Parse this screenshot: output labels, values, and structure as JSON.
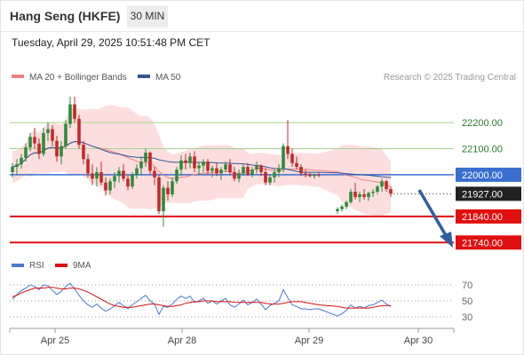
{
  "header": {
    "instrument": "Hang Seng (HKFE)",
    "timeframe": "30 MIN",
    "datetime": "Tuesday, April 29, 2025 10:51:48 PM CET"
  },
  "credit": "Research © 2025 Trading Central",
  "colors": {
    "ma20": "#f08080",
    "bollinger_fill": "#fcdede",
    "ma50": "#2f5597",
    "candle_up": "#2e8b3a",
    "candle_down": "#c62828",
    "support": "#e01010",
    "pivot": "#3a6fd0",
    "resistance": "#a8d18d",
    "rsi": "#4a78d0",
    "rsi_ma": "#e01010",
    "arrow": "#2f5fa0"
  },
  "chart_data": [
    {
      "type": "candlestick",
      "title": "",
      "legend": [
        {
          "name": "MA 20 + Bollinger Bands",
          "color": "#f08080",
          "icon": "line-swatch"
        },
        {
          "name": "MA 50",
          "color": "#2f5597",
          "icon": "line-swatch"
        }
      ],
      "x_ticks": [
        "Apr 25",
        "Apr 28",
        "Apr 29",
        "Apr 30"
      ],
      "ylim": [
        21700,
        22330
      ],
      "levels": [
        {
          "label": "22200.00",
          "value": 22200,
          "kind": "resistance"
        },
        {
          "label": "22100.00",
          "value": 22100,
          "kind": "resistance"
        },
        {
          "label": "22000.00",
          "value": 22000,
          "kind": "pivot"
        },
        {
          "label": "21927.00",
          "value": 21927,
          "kind": "last"
        },
        {
          "label": "21840.00",
          "value": 21840,
          "kind": "support"
        },
        {
          "label": "21740.00",
          "value": 21740,
          "kind": "support"
        }
      ],
      "ohlc": [
        [
          22010,
          22045,
          21990,
          22030
        ],
        [
          22030,
          22060,
          22000,
          22040
        ],
        [
          22040,
          22080,
          22025,
          22065
        ],
        [
          22065,
          22120,
          22050,
          22105
        ],
        [
          22105,
          22160,
          22090,
          22145
        ],
        [
          22145,
          22180,
          22100,
          22120
        ],
        [
          22120,
          22140,
          22060,
          22080
        ],
        [
          22080,
          22180,
          22070,
          22160
        ],
        [
          22160,
          22200,
          22130,
          22175
        ],
        [
          22175,
          22190,
          22110,
          22130
        ],
        [
          22130,
          22150,
          22050,
          22070
        ],
        [
          22070,
          22130,
          22040,
          22110
        ],
        [
          22110,
          22210,
          22100,
          22195
        ],
        [
          22195,
          22300,
          22180,
          22270
        ],
        [
          22270,
          22300,
          22200,
          22215
        ],
        [
          22215,
          22230,
          22100,
          22115
        ],
        [
          22115,
          22130,
          22040,
          22060
        ],
        [
          22060,
          22080,
          21990,
          22005
        ],
        [
          22005,
          22040,
          21960,
          21985
        ],
        [
          21985,
          22030,
          21955,
          22010
        ],
        [
          22010,
          22050,
          21960,
          21970
        ],
        [
          21970,
          21990,
          21920,
          21940
        ],
        [
          21940,
          21985,
          21925,
          21975
        ],
        [
          21975,
          22010,
          21950,
          21995
        ],
        [
          21995,
          22030,
          21970,
          22015
        ],
        [
          22015,
          22040,
          21975,
          21985
        ],
        [
          21985,
          22000,
          21940,
          21955
        ],
        [
          21955,
          22010,
          21945,
          22000
        ],
        [
          22000,
          22040,
          21985,
          22025
        ],
        [
          22025,
          22070,
          22000,
          22050
        ],
        [
          22050,
          22100,
          22030,
          22085
        ],
        [
          22085,
          22090,
          22000,
          22015
        ],
        [
          22015,
          22030,
          21960,
          21990
        ],
        [
          21990,
          22000,
          21850,
          21860
        ],
        [
          21860,
          21960,
          21800,
          21950
        ],
        [
          21950,
          21975,
          21900,
          21925
        ],
        [
          21925,
          21990,
          21915,
          21975
        ],
        [
          21975,
          22030,
          21965,
          22020
        ],
        [
          22020,
          22075,
          21995,
          22055
        ],
        [
          22055,
          22080,
          22020,
          22045
        ],
        [
          22045,
          22085,
          22025,
          22070
        ],
        [
          22070,
          22090,
          22010,
          22025
        ],
        [
          22025,
          22050,
          22000,
          22035
        ],
        [
          22035,
          22060,
          22010,
          22050
        ],
        [
          22050,
          22060,
          22000,
          22015
        ],
        [
          22015,
          22035,
          21990,
          22025
        ],
        [
          22025,
          22045,
          21995,
          22005
        ],
        [
          22005,
          22030,
          21980,
          22020
        ],
        [
          22020,
          22050,
          22010,
          22040
        ],
        [
          22040,
          22060,
          22000,
          22010
        ],
        [
          22010,
          22030,
          21975,
          21985
        ],
        [
          21985,
          22020,
          21970,
          22005
        ],
        [
          22005,
          22040,
          21995,
          22030
        ],
        [
          22030,
          22045,
          21995,
          22000
        ],
        [
          22000,
          22030,
          21990,
          22020
        ],
        [
          22020,
          22050,
          22005,
          22035
        ],
        [
          22035,
          22040,
          21995,
          22010
        ],
        [
          22010,
          22025,
          21960,
          21970
        ],
        [
          21970,
          22000,
          21960,
          21990
        ],
        [
          21990,
          22020,
          21970,
          22010
        ],
        [
          22010,
          22040,
          21990,
          22025
        ],
        [
          22025,
          22120,
          22010,
          22110
        ],
        [
          22110,
          22210,
          22060,
          22080
        ],
        [
          22080,
          22100,
          22030,
          22045
        ],
        [
          22045,
          22070,
          22020,
          22030
        ],
        [
          22030,
          22040,
          21995,
          22005
        ],
        [
          22005,
          22020,
          21990,
          22000
        ],
        [
          22000,
          22010,
          21990,
          21995
        ],
        [
          21995,
          22005,
          21985,
          22000
        ],
        [
          22000,
          22010,
          21990,
          21998
        ],
        [
          21860,
          21875,
          21850,
          21868
        ],
        [
          21868,
          21885,
          21858,
          21878
        ],
        [
          21878,
          21900,
          21868,
          21895
        ],
        [
          21895,
          21945,
          21890,
          21935
        ],
        [
          21935,
          21970,
          21905,
          21915
        ],
        [
          21915,
          21935,
          21895,
          21925
        ],
        [
          21925,
          21945,
          21905,
          21915
        ],
        [
          21915,
          21935,
          21900,
          21930
        ],
        [
          21930,
          21945,
          21915,
          21935
        ],
        [
          21935,
          21960,
          21925,
          21955
        ],
        [
          21955,
          21985,
          21935,
          21975
        ],
        [
          21975,
          21980,
          21935,
          21945
        ],
        [
          21945,
          21955,
          21915,
          21927
        ]
      ]
    },
    {
      "type": "line",
      "title": "",
      "legend": [
        {
          "name": "RSI",
          "color": "#4a78d0"
        },
        {
          "name": "9MA",
          "color": "#e01010"
        }
      ],
      "y_ticks": [
        70,
        50,
        30
      ],
      "ylim": [
        20,
        80
      ],
      "series": [
        {
          "name": "RSI",
          "values": [
            52,
            58,
            63,
            66,
            70,
            68,
            64,
            70,
            69,
            63,
            58,
            62,
            68,
            72,
            65,
            57,
            50,
            45,
            42,
            46,
            41,
            37,
            40,
            44,
            48,
            44,
            40,
            45,
            49,
            53,
            57,
            50,
            46,
            33,
            43,
            42,
            46,
            52,
            56,
            53,
            56,
            48,
            50,
            53,
            47,
            50,
            46,
            50,
            53,
            45,
            42,
            46,
            51,
            45,
            48,
            52,
            46,
            39,
            44,
            47,
            50,
            64,
            54,
            45,
            43,
            40,
            40,
            39,
            40,
            40,
            31,
            34,
            38,
            45,
            41,
            43,
            41,
            44,
            45,
            48,
            51,
            46,
            43
          ]
        },
        {
          "name": "9MA",
          "values": [
            55,
            57,
            60,
            62,
            64,
            66,
            66,
            66,
            67,
            67,
            66,
            65,
            65,
            66,
            66,
            65,
            63,
            61,
            58,
            55,
            52,
            49,
            46,
            44,
            43,
            42,
            42,
            42,
            43,
            44,
            45,
            46,
            46,
            45,
            44,
            43,
            43,
            44,
            45,
            47,
            48,
            49,
            49,
            50,
            50,
            50,
            49,
            49,
            49,
            49,
            48,
            48,
            48,
            48,
            48,
            48,
            48,
            47,
            46,
            46,
            46,
            47,
            48,
            49,
            49,
            49,
            48,
            47,
            46,
            45,
            43,
            42,
            41,
            41,
            41,
            41,
            41,
            41,
            42,
            43,
            44,
            44,
            44
          ]
        }
      ]
    }
  ]
}
